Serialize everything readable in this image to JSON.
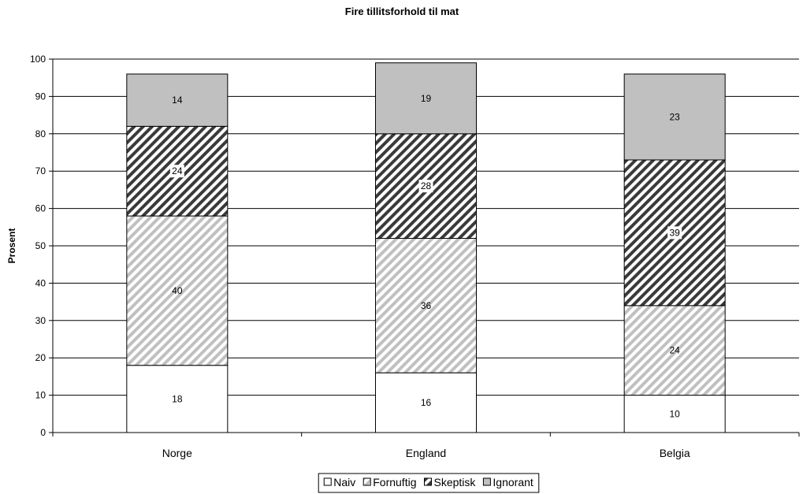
{
  "chart_data": {
    "type": "bar",
    "stacked": true,
    "title": "Fire tillitsforhold til mat",
    "xlabel": "",
    "ylabel": "Prosent",
    "ylim": [
      0,
      100
    ],
    "yticks": [
      0,
      10,
      20,
      30,
      40,
      50,
      60,
      70,
      80,
      90,
      100
    ],
    "categories": [
      "Norge",
      "England",
      "Belgia"
    ],
    "grid": true,
    "legend_position": "bottom",
    "series": [
      {
        "name": "Naiv",
        "values": [
          18,
          16,
          10
        ],
        "fill": "#ffffff",
        "pattern": "solid"
      },
      {
        "name": "Fornuftig",
        "values": [
          40,
          36,
          24
        ],
        "fill": "#ffffff",
        "stripe": "#c0c0c0",
        "pattern": "light-diagonal"
      },
      {
        "name": "Skeptisk",
        "values": [
          24,
          28,
          39
        ],
        "fill": "#ffffff",
        "stripe": "#3a3a3a",
        "pattern": "dark-diagonal"
      },
      {
        "name": "Ignorant",
        "values": [
          14,
          19,
          23
        ],
        "fill": "#c0c0c0",
        "pattern": "solid"
      }
    ]
  }
}
